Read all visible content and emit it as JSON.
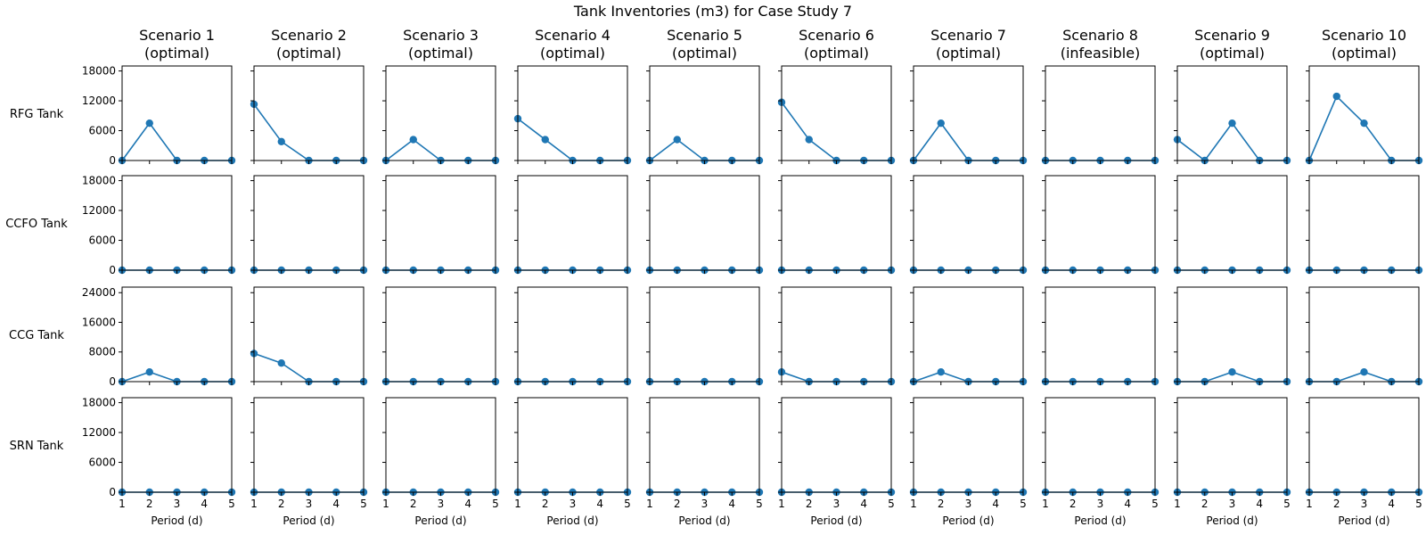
{
  "chart_data": {
    "type": "line",
    "title": "Tank Inventories (m3) for Case Study 7",
    "xlabel": "Period (d)",
    "x": [
      1,
      2,
      3,
      4,
      5
    ],
    "series_color": "#1f77b4",
    "scenarios": [
      {
        "label": "Scenario 1",
        "status": "(optimal)"
      },
      {
        "label": "Scenario 2",
        "status": "(optimal)"
      },
      {
        "label": "Scenario 3",
        "status": "(optimal)"
      },
      {
        "label": "Scenario 4",
        "status": "(optimal)"
      },
      {
        "label": "Scenario 5",
        "status": "(optimal)"
      },
      {
        "label": "Scenario 6",
        "status": "(optimal)"
      },
      {
        "label": "Scenario 7",
        "status": "(optimal)"
      },
      {
        "label": "Scenario 8",
        "status": "(infeasible)"
      },
      {
        "label": "Scenario 9",
        "status": "(optimal)"
      },
      {
        "label": "Scenario 10",
        "status": "(optimal)"
      }
    ],
    "tanks": [
      {
        "name": "RFG Tank",
        "ylim": [
          0,
          19000
        ],
        "yticks": [
          0,
          6000,
          12000,
          18000
        ],
        "values": [
          [
            0,
            7500,
            0,
            0,
            0
          ],
          [
            11300,
            3800,
            0,
            0,
            0
          ],
          [
            0,
            4200,
            0,
            0,
            0
          ],
          [
            8400,
            4200,
            0,
            0,
            0
          ],
          [
            0,
            4200,
            0,
            0,
            0
          ],
          [
            11700,
            4200,
            0,
            0,
            0
          ],
          [
            0,
            7500,
            0,
            0,
            0
          ],
          [
            0,
            0,
            0,
            0,
            0
          ],
          [
            4200,
            0,
            7500,
            0,
            0
          ],
          [
            0,
            12900,
            7500,
            0,
            0
          ]
        ]
      },
      {
        "name": "CCFO Tank",
        "ylim": [
          0,
          19000
        ],
        "yticks": [
          0,
          6000,
          12000,
          18000
        ],
        "values": [
          [
            0,
            0,
            0,
            0,
            0
          ],
          [
            0,
            0,
            0,
            0,
            0
          ],
          [
            0,
            0,
            0,
            0,
            0
          ],
          [
            0,
            0,
            0,
            0,
            0
          ],
          [
            0,
            0,
            0,
            0,
            0
          ],
          [
            0,
            0,
            0,
            0,
            0
          ],
          [
            0,
            0,
            0,
            0,
            0
          ],
          [
            0,
            0,
            0,
            0,
            0
          ],
          [
            0,
            0,
            0,
            0,
            0
          ],
          [
            0,
            0,
            0,
            0,
            0
          ]
        ]
      },
      {
        "name": "CCG Tank",
        "ylim": [
          0,
          25500
        ],
        "yticks": [
          0,
          8000,
          16000,
          24000
        ],
        "values": [
          [
            0,
            2600,
            0,
            0,
            0
          ],
          [
            7600,
            5000,
            0,
            0,
            0
          ],
          [
            0,
            0,
            0,
            0,
            0
          ],
          [
            0,
            0,
            0,
            0,
            0
          ],
          [
            0,
            0,
            0,
            0,
            0
          ],
          [
            2600,
            0,
            0,
            0,
            0
          ],
          [
            0,
            2600,
            0,
            0,
            0
          ],
          [
            0,
            0,
            0,
            0,
            0
          ],
          [
            0,
            0,
            2600,
            0,
            0
          ],
          [
            0,
            0,
            2600,
            0,
            0
          ]
        ]
      },
      {
        "name": "SRN Tank",
        "ylim": [
          0,
          19000
        ],
        "yticks": [
          0,
          6000,
          12000,
          18000
        ],
        "values": [
          [
            0,
            0,
            0,
            0,
            0
          ],
          [
            0,
            0,
            0,
            0,
            0
          ],
          [
            0,
            0,
            0,
            0,
            0
          ],
          [
            0,
            0,
            0,
            0,
            0
          ],
          [
            0,
            0,
            0,
            0,
            0
          ],
          [
            0,
            0,
            0,
            0,
            0
          ],
          [
            0,
            0,
            0,
            0,
            0
          ],
          [
            0,
            0,
            0,
            0,
            0
          ],
          [
            0,
            0,
            0,
            0,
            0
          ],
          [
            0,
            0,
            0,
            0,
            0
          ]
        ]
      }
    ]
  }
}
